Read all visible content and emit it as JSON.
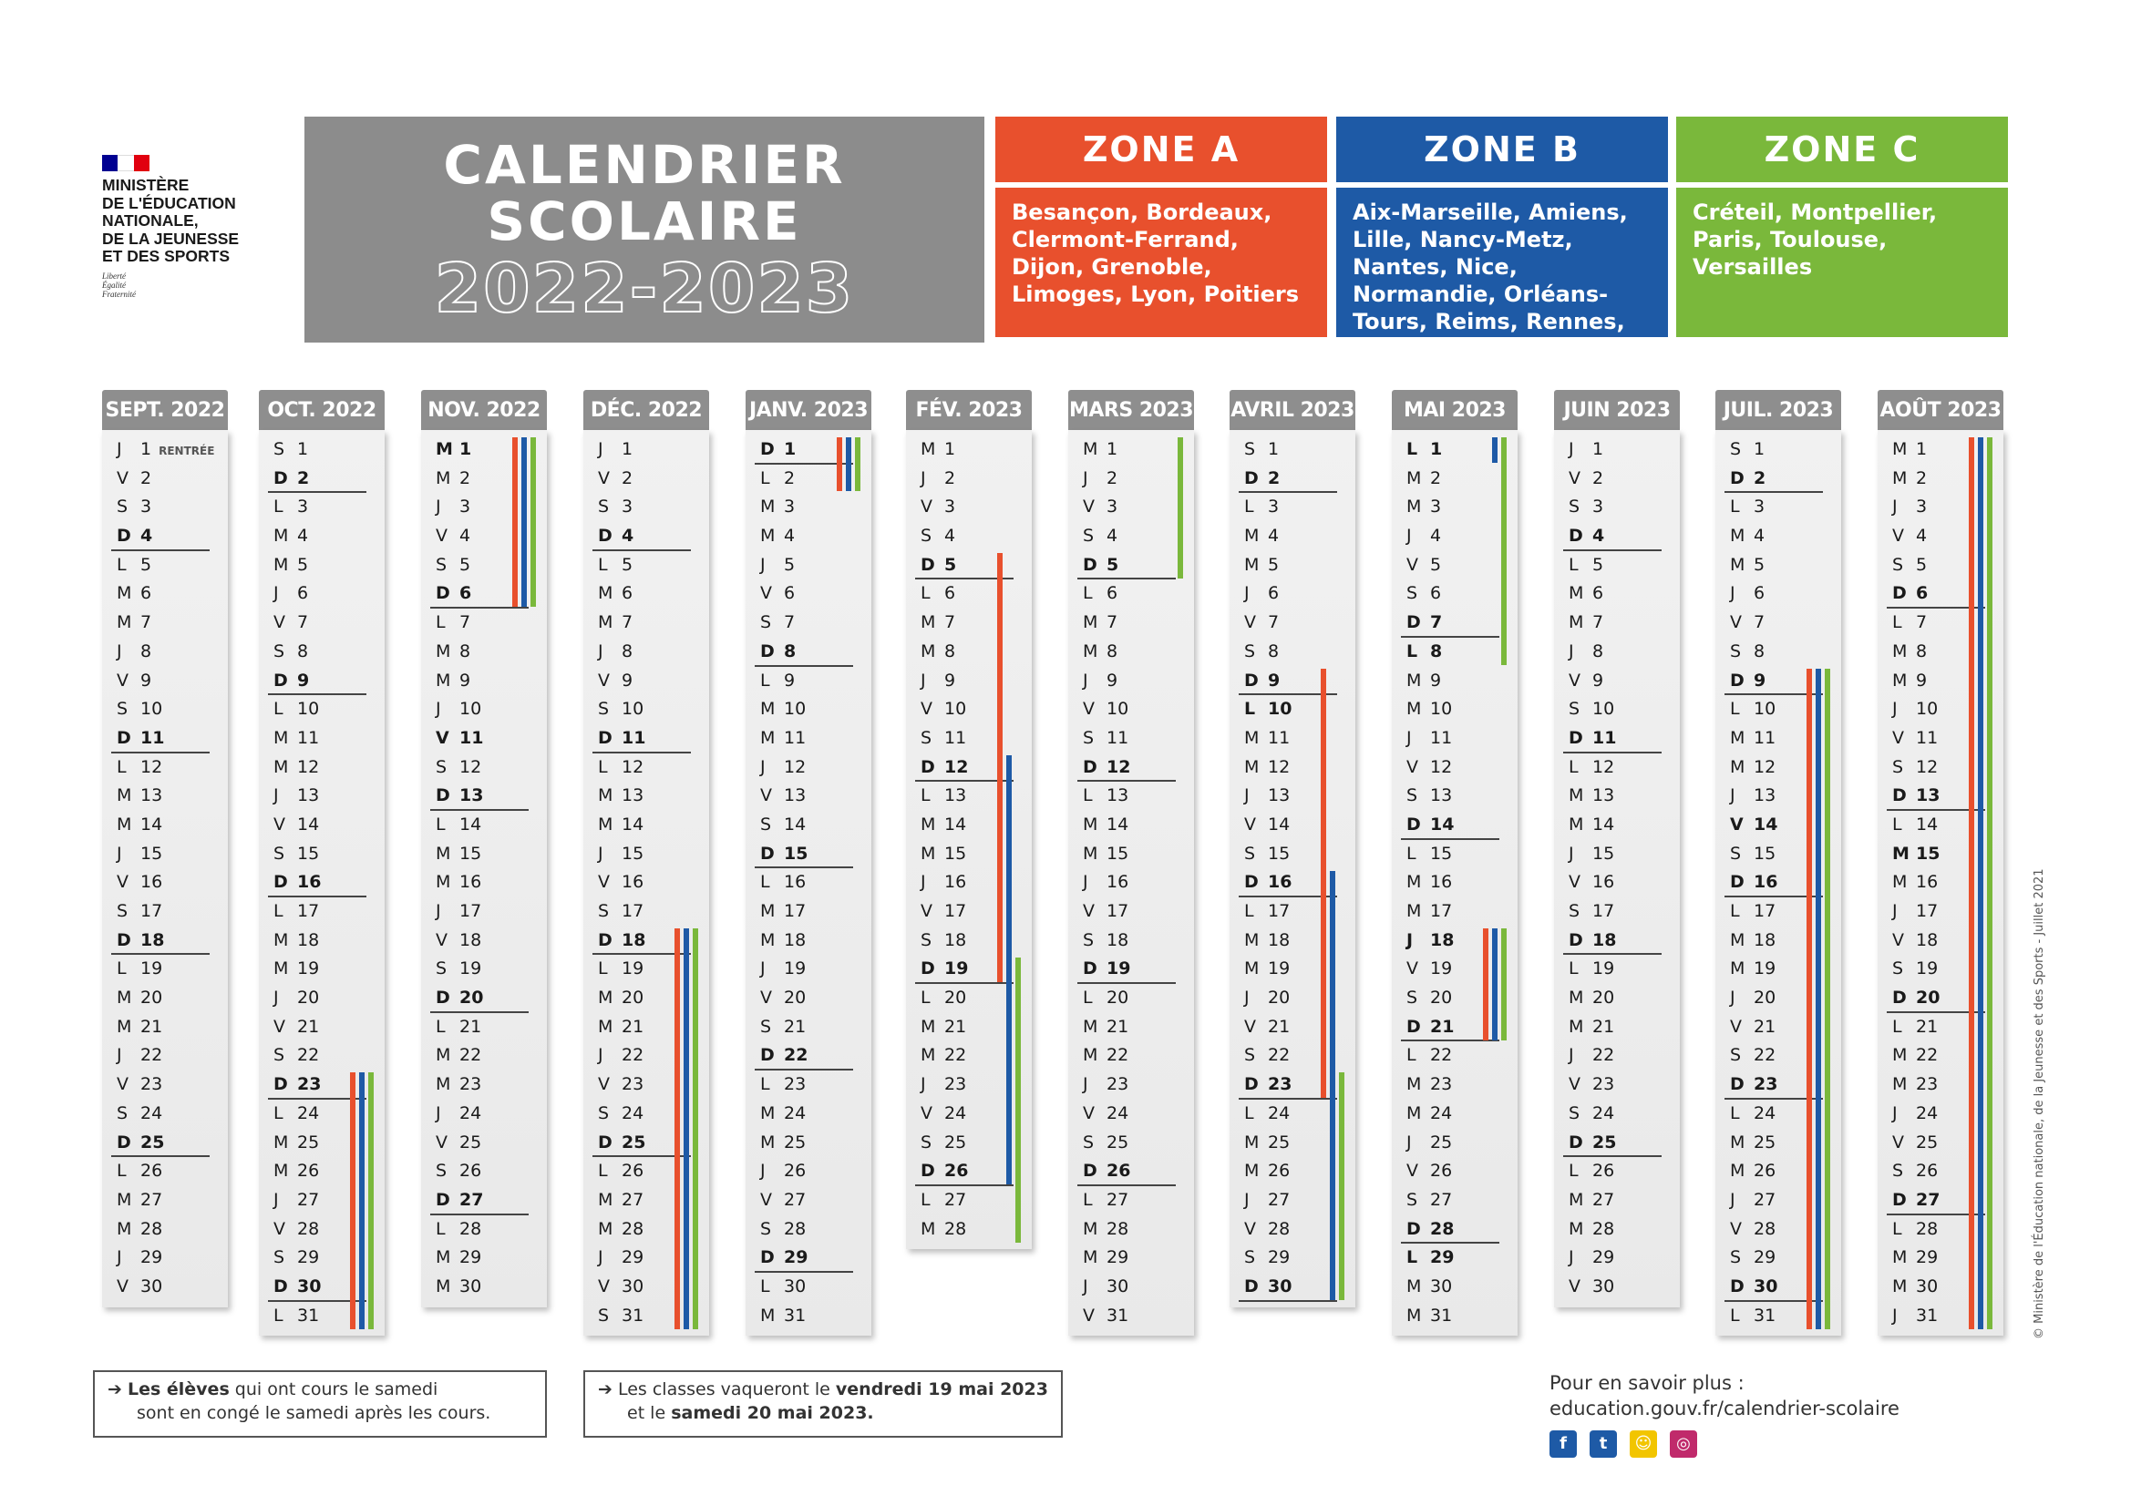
{
  "logo": {
    "ministry_lines": [
      "MINISTÈRE",
      "DE L'ÉDUCATION",
      "NATIONALE,",
      "DE LA JEUNESSE",
      "ET DES SPORTS"
    ],
    "motto": [
      "Liberté",
      "Égalité",
      "Fraternité"
    ]
  },
  "title": {
    "line1": "CALENDRIER",
    "line2": "SCOLAIRE",
    "line3": "2022-2023"
  },
  "zones": [
    {
      "name": "ZONE A",
      "cities": "Besançon, Bordeaux, Clermont-Ferrand, Dijon, Grenoble, Limoges, Lyon, Poitiers",
      "color": "#e8502d"
    },
    {
      "name": "ZONE B",
      "cities": "Aix-Marseille, Amiens, Lille, Nancy-Metz, Nantes, Nice, Normandie, Orléans-Tours, Reims, Rennes, Strasbourg",
      "color": "#1e5aa6"
    },
    {
      "name": "ZONE C",
      "cities": "Créteil, Montpellier, Paris, Toulouse, Versailles",
      "color": "#7ab83b"
    }
  ],
  "months": [
    {
      "name": "SEPT. 2022",
      "first": 4,
      "days": 30,
      "note_day": 1,
      "note": "RENTRÉE",
      "bold": []
    },
    {
      "name": "OCT. 2022",
      "first": 6,
      "days": 31,
      "bold": []
    },
    {
      "name": "NOV. 2022",
      "first": 2,
      "days": 30,
      "bold": [
        1,
        11
      ]
    },
    {
      "name": "DÉC. 2022",
      "first": 4,
      "days": 31,
      "bold": []
    },
    {
      "name": "JANV. 2023",
      "first": 0,
      "days": 31,
      "bold": []
    },
    {
      "name": "FÉV. 2023",
      "first": 3,
      "days": 28,
      "bold": []
    },
    {
      "name": "MARS 2023",
      "first": 3,
      "days": 31,
      "bold": []
    },
    {
      "name": "AVRIL 2023",
      "first": 6,
      "days": 30,
      "bold": [
        10
      ]
    },
    {
      "name": "MAI 2023",
      "first": 1,
      "days": 31,
      "bold": [
        1,
        8,
        18,
        29
      ]
    },
    {
      "name": "JUIN 2023",
      "first": 4,
      "days": 30,
      "bold": []
    },
    {
      "name": "JUIL. 2023",
      "first": 6,
      "days": 31,
      "bold": [
        14
      ]
    },
    {
      "name": "AOÛT 2023",
      "first": 2,
      "days": 31,
      "bold": [
        15
      ]
    }
  ],
  "letters": [
    "D",
    "L",
    "M",
    "M",
    "J",
    "V",
    "S"
  ],
  "bars": [
    {
      "m": 1,
      "z": "A",
      "from": 23,
      "to": 31
    },
    {
      "m": 1,
      "z": "B",
      "from": 23,
      "to": 31
    },
    {
      "m": 1,
      "z": "C",
      "from": 23,
      "to": 31
    },
    {
      "m": 2,
      "z": "A",
      "from": 1,
      "to": 6
    },
    {
      "m": 2,
      "z": "B",
      "from": 1,
      "to": 6
    },
    {
      "m": 2,
      "z": "C",
      "from": 1,
      "to": 6
    },
    {
      "m": 3,
      "z": "A",
      "from": 18,
      "to": 31
    },
    {
      "m": 3,
      "z": "B",
      "from": 18,
      "to": 31
    },
    {
      "m": 3,
      "z": "C",
      "from": 18,
      "to": 31
    },
    {
      "m": 4,
      "z": "A",
      "from": 1,
      "to": 2
    },
    {
      "m": 4,
      "z": "B",
      "from": 1,
      "to": 2
    },
    {
      "m": 4,
      "z": "C",
      "from": 1,
      "to": 2
    },
    {
      "m": 5,
      "z": "A",
      "from": 5,
      "to": 19
    },
    {
      "m": 5,
      "z": "B",
      "from": 12,
      "to": 26
    },
    {
      "m": 5,
      "z": "C",
      "from": 19,
      "to": 28
    },
    {
      "m": 6,
      "z": "C",
      "from": 1,
      "to": 5
    },
    {
      "m": 7,
      "z": "A",
      "from": 9,
      "to": 23
    },
    {
      "m": 7,
      "z": "B",
      "from": 16,
      "to": 30
    },
    {
      "m": 7,
      "z": "C",
      "from": 23,
      "to": 30
    },
    {
      "m": 8,
      "z": "B",
      "from": 1,
      "to": 1
    },
    {
      "m": 8,
      "z": "C",
      "from": 1,
      "to": 8
    },
    {
      "m": 8,
      "z": "A",
      "from": 18,
      "to": 21
    },
    {
      "m": 8,
      "z": "B",
      "from": 18,
      "to": 21
    },
    {
      "m": 8,
      "z": "C",
      "from": 18,
      "to": 21
    },
    {
      "m": 10,
      "z": "A",
      "from": 9,
      "to": 31
    },
    {
      "m": 10,
      "z": "B",
      "from": 9,
      "to": 31
    },
    {
      "m": 10,
      "z": "C",
      "from": 9,
      "to": 31
    },
    {
      "m": 11,
      "z": "A",
      "from": 1,
      "to": 31
    },
    {
      "m": 11,
      "z": "B",
      "from": 1,
      "to": 31
    },
    {
      "m": 11,
      "z": "C",
      "from": 1,
      "to": 31
    }
  ],
  "notes": {
    "n1_bold": "Les élèves",
    "n1_rest": " qui ont cours le samedi",
    "n1_line2": "sont en congé le samedi après les cours.",
    "n2_a": "Les classes vaqueront le ",
    "n2_b": "vendredi 19 mai 2023",
    "n2_c": "et le ",
    "n2_d": "samedi 20 mai 2023."
  },
  "info": {
    "title": "Pour en savoir plus :",
    "url": "education.gouv.fr/calendrier-scolaire",
    "icons": [
      "facebook-icon",
      "twitter-icon",
      "snapchat-icon",
      "instagram-icon"
    ]
  },
  "side": "© Ministère de l'Éducation nationale, de la Jeunesse et des Sports - Juillet 2021"
}
